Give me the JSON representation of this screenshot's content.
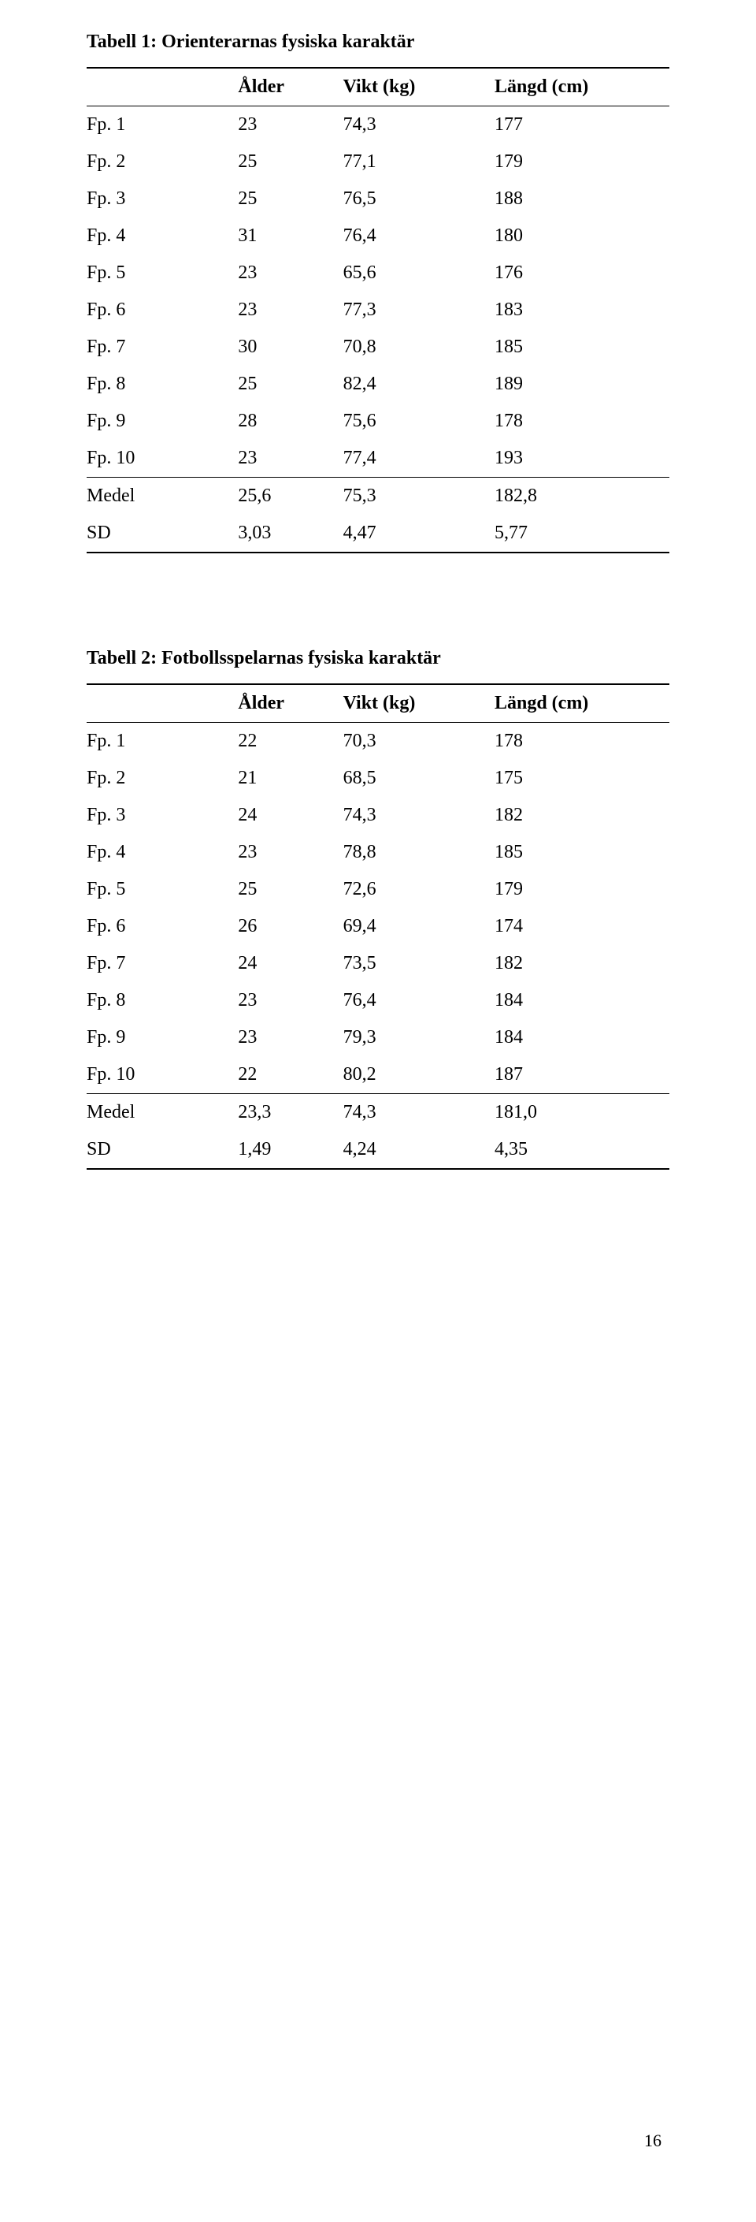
{
  "page_number": "16",
  "table1": {
    "title": "Tabell 1: Orienterarnas fysiska karaktär",
    "headers": {
      "label": "",
      "age": "Ålder",
      "vikt": "Vikt (kg)",
      "len": "Längd (cm)"
    },
    "rows": [
      {
        "label": "Fp. 1",
        "age": "23",
        "vikt": "74,3",
        "len": "177"
      },
      {
        "label": "Fp. 2",
        "age": "25",
        "vikt": "77,1",
        "len": "179"
      },
      {
        "label": "Fp. 3",
        "age": "25",
        "vikt": "76,5",
        "len": "188"
      },
      {
        "label": "Fp. 4",
        "age": "31",
        "vikt": "76,4",
        "len": "180"
      },
      {
        "label": "Fp. 5",
        "age": "23",
        "vikt": "65,6",
        "len": "176"
      },
      {
        "label": "Fp. 6",
        "age": "23",
        "vikt": "77,3",
        "len": "183"
      },
      {
        "label": "Fp. 7",
        "age": "30",
        "vikt": "70,8",
        "len": "185"
      },
      {
        "label": "Fp. 8",
        "age": "25",
        "vikt": "82,4",
        "len": "189"
      },
      {
        "label": "Fp. 9",
        "age": "28",
        "vikt": "75,6",
        "len": "178"
      },
      {
        "label": "Fp. 10",
        "age": "23",
        "vikt": "77,4",
        "len": "193"
      }
    ],
    "medel": {
      "label": "Medel",
      "age": "25,6",
      "vikt": "75,3",
      "len": "182,8"
    },
    "sd": {
      "label": "SD",
      "age": "3,03",
      "vikt": "4,47",
      "len": "5,77"
    }
  },
  "table2": {
    "title": "Tabell 2: Fotbollsspelarnas fysiska karaktär",
    "headers": {
      "label": "",
      "age": "Ålder",
      "vikt": "Vikt (kg)",
      "len": "Längd (cm)"
    },
    "rows": [
      {
        "label": "Fp. 1",
        "age": "22",
        "vikt": "70,3",
        "len": "178"
      },
      {
        "label": "Fp. 2",
        "age": "21",
        "vikt": "68,5",
        "len": "175"
      },
      {
        "label": "Fp. 3",
        "age": "24",
        "vikt": "74,3",
        "len": "182"
      },
      {
        "label": "Fp. 4",
        "age": "23",
        "vikt": "78,8",
        "len": "185"
      },
      {
        "label": "Fp. 5",
        "age": "25",
        "vikt": "72,6",
        "len": "179"
      },
      {
        "label": "Fp. 6",
        "age": "26",
        "vikt": "69,4",
        "len": "174"
      },
      {
        "label": "Fp. 7",
        "age": "24",
        "vikt": "73,5",
        "len": "182"
      },
      {
        "label": "Fp. 8",
        "age": "23",
        "vikt": "76,4",
        "len": "184"
      },
      {
        "label": "Fp. 9",
        "age": "23",
        "vikt": "79,3",
        "len": "184"
      },
      {
        "label": "Fp. 10",
        "age": "22",
        "vikt": "80,2",
        "len": "187"
      }
    ],
    "medel": {
      "label": "Medel",
      "age": "23,3",
      "vikt": "74,3",
      "len": "181,0"
    },
    "sd": {
      "label": "SD",
      "age": "1,49",
      "vikt": "4,24",
      "len": "4,35"
    }
  }
}
